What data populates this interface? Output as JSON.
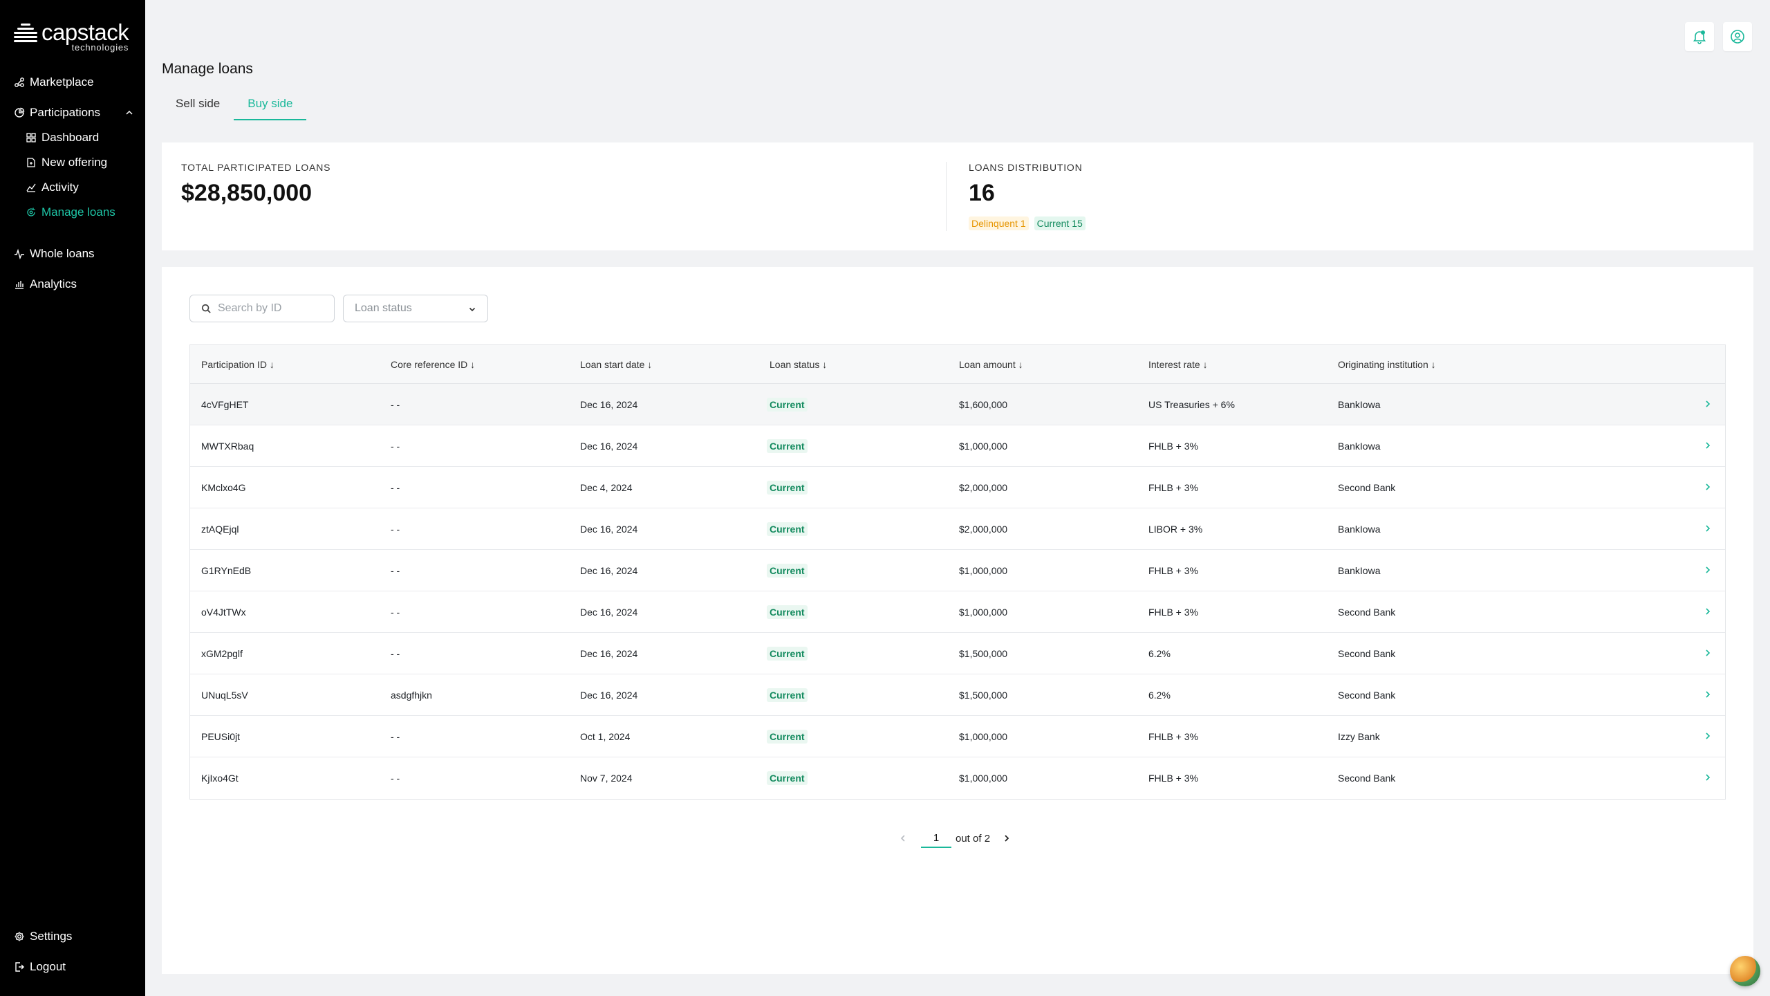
{
  "brand": {
    "name": "capstack",
    "sub": "technologies"
  },
  "sidebar": {
    "items": [
      {
        "label": "Marketplace"
      },
      {
        "label": "Participations"
      },
      {
        "label": "Dashboard"
      },
      {
        "label": "New offering"
      },
      {
        "label": "Activity"
      },
      {
        "label": "Manage loans"
      },
      {
        "label": "Whole loans"
      },
      {
        "label": "Analytics"
      }
    ],
    "footer": [
      {
        "label": "Settings"
      },
      {
        "label": "Logout"
      }
    ]
  },
  "header": {
    "title": "Manage loans",
    "tabs": [
      {
        "label": "Sell side"
      },
      {
        "label": "Buy side"
      }
    ]
  },
  "stats": {
    "total_label": "TOTAL PARTICIPATED LOANS",
    "total_value": "$28,850,000",
    "dist_label": "LOANS DISTRIBUTION",
    "dist_value": "16",
    "delinquent_badge": "Delinquent 1",
    "current_badge": "Current 15"
  },
  "filters": {
    "search_placeholder": "Search by ID",
    "status_placeholder": "Loan status"
  },
  "table": {
    "headers": [
      "Participation ID ↓",
      "Core reference ID ↓",
      "Loan start date ↓",
      "Loan status ↓",
      "Loan amount ↓",
      "Interest rate ↓",
      "Originating institution ↓"
    ],
    "rows": [
      [
        "4cVFgHET",
        "- -",
        "Dec 16, 2024",
        "Current",
        "$1,600,000",
        "US Treasuries + 6%",
        "BankIowa"
      ],
      [
        "MWTXRbaq",
        "- -",
        "Dec 16, 2024",
        "Current",
        "$1,000,000",
        "FHLB + 3%",
        "BankIowa"
      ],
      [
        "KMclxo4G",
        "- -",
        "Dec 4, 2024",
        "Current",
        "$2,000,000",
        "FHLB + 3%",
        "Second Bank"
      ],
      [
        "ztAQEjql",
        "- -",
        "Dec 16, 2024",
        "Current",
        "$2,000,000",
        "LIBOR + 3%",
        "BankIowa"
      ],
      [
        "G1RYnEdB",
        "- -",
        "Dec 16, 2024",
        "Current",
        "$1,000,000",
        "FHLB + 3%",
        "BankIowa"
      ],
      [
        "oV4JtTWx",
        "- -",
        "Dec 16, 2024",
        "Current",
        "$1,000,000",
        "FHLB + 3%",
        "Second Bank"
      ],
      [
        "xGM2pglf",
        "- -",
        "Dec 16, 2024",
        "Current",
        "$1,500,000",
        "6.2%",
        "Second Bank"
      ],
      [
        "UNuqL5sV",
        "asdgfhjkn",
        "Dec 16, 2024",
        "Current",
        "$1,500,000",
        "6.2%",
        "Second Bank"
      ],
      [
        "PEUSi0jt",
        "- -",
        "Oct 1, 2024",
        "Current",
        "$1,000,000",
        "FHLB + 3%",
        "Izzy Bank"
      ],
      [
        "KjIxo4Gt",
        "- -",
        "Nov 7, 2024",
        "Current",
        "$1,000,000",
        "FHLB + 3%",
        "Second Bank"
      ]
    ]
  },
  "pagination": {
    "current": "1",
    "of_label": "out of 2"
  },
  "colors": {
    "accent": "#1ab89a",
    "sidebar_bg": "#000000",
    "status_current": "#138a5e",
    "status_delinquent": "#e69500"
  },
  "icons": {
    "marketplace": "network-icon",
    "participations": "pie-chart-icon",
    "dashboard": "grid-icon",
    "new_offering": "document-plus-icon",
    "activity": "activity-icon",
    "manage_loans": "gear-cycle-icon",
    "whole_loans": "pulse-icon",
    "analytics": "bar-chart-icon",
    "settings": "gear-icon",
    "logout": "logout-icon",
    "notifications": "bell-icon",
    "profile": "user-circle-icon"
  }
}
